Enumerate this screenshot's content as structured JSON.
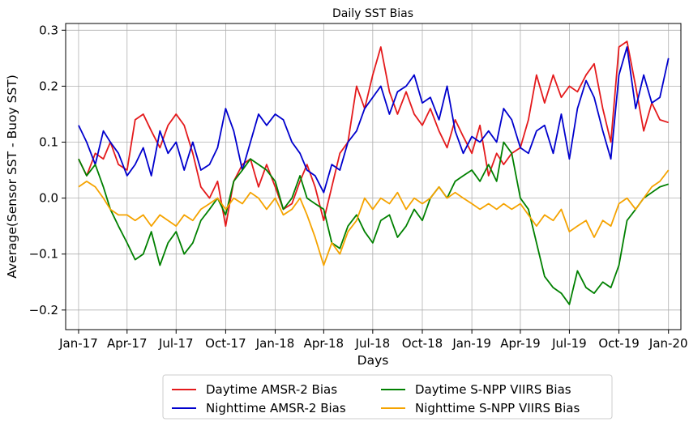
{
  "chart_data": {
    "type": "line",
    "title": "Daily SST Bias",
    "xlabel": "Days",
    "ylabel": "Average(Sensor SST - Buoy SST)",
    "x_tick_labels": [
      "Jan-17",
      "Apr-17",
      "Jul-17",
      "Oct-17",
      "Jan-18",
      "Apr-18",
      "Jul-18",
      "Oct-18",
      "Jan-19",
      "Apr-19",
      "Jul-19",
      "Oct-19",
      "Jan-20"
    ],
    "xlim": [
      "2016-12-08",
      "2020-01-24"
    ],
    "ylim": [
      -0.235,
      0.312
    ],
    "y_ticks": [
      -0.2,
      -0.1,
      0.0,
      0.1,
      0.2,
      0.3
    ],
    "y_tick_labels": [
      "−0.2",
      "−0.1",
      "0.0",
      "0.1",
      "0.2",
      "0.3"
    ],
    "grid": true,
    "legend_position": "bottom-outside",
    "series": [
      {
        "name": "Daytime AMSR-2 Bias",
        "color": "#e41a1c",
        "x": [
          "2017-01-01",
          "2017-01-16",
          "2017-02-01",
          "2017-02-16",
          "2017-03-01",
          "2017-03-16",
          "2017-04-01",
          "2017-04-16",
          "2017-05-01",
          "2017-05-16",
          "2017-06-01",
          "2017-06-16",
          "2017-07-01",
          "2017-07-16",
          "2017-08-01",
          "2017-08-16",
          "2017-09-01",
          "2017-09-16",
          "2017-10-01",
          "2017-10-16",
          "2017-11-01",
          "2017-11-16",
          "2017-12-01",
          "2017-12-16",
          "2018-01-01",
          "2018-01-16",
          "2018-02-01",
          "2018-02-16",
          "2018-03-01",
          "2018-03-16",
          "2018-04-01",
          "2018-04-16",
          "2018-05-01",
          "2018-05-16",
          "2018-06-01",
          "2018-06-16",
          "2018-07-01",
          "2018-07-16",
          "2018-08-01",
          "2018-08-16",
          "2018-09-01",
          "2018-09-16",
          "2018-10-01",
          "2018-10-16",
          "2018-11-01",
          "2018-11-16",
          "2018-12-01",
          "2018-12-16",
          "2019-01-01",
          "2019-01-16",
          "2019-02-01",
          "2019-02-16",
          "2019-03-01",
          "2019-03-16",
          "2019-04-01",
          "2019-04-16",
          "2019-05-01",
          "2019-05-16",
          "2019-06-01",
          "2019-06-16",
          "2019-07-01",
          "2019-07-16",
          "2019-08-01",
          "2019-08-16",
          "2019-09-01",
          "2019-09-16",
          "2019-10-01",
          "2019-10-16",
          "2019-11-01",
          "2019-11-16",
          "2019-12-01",
          "2019-12-16",
          "2020-01-01"
        ],
        "values": [
          0.07,
          0.04,
          0.08,
          0.07,
          0.1,
          0.06,
          0.05,
          0.14,
          0.15,
          0.12,
          0.09,
          0.13,
          0.15,
          0.13,
          0.08,
          0.02,
          0.0,
          0.03,
          -0.05,
          0.03,
          0.06,
          0.07,
          0.02,
          0.06,
          0.02,
          -0.02,
          -0.01,
          0.03,
          0.06,
          0.02,
          -0.04,
          0.02,
          0.08,
          0.1,
          0.2,
          0.16,
          0.22,
          0.27,
          0.19,
          0.15,
          0.19,
          0.15,
          0.13,
          0.16,
          0.12,
          0.09,
          0.14,
          0.11,
          0.08,
          0.13,
          0.04,
          0.08,
          0.06,
          0.08,
          0.09,
          0.14,
          0.22,
          0.17,
          0.22,
          0.18,
          0.2,
          0.19,
          0.22,
          0.24,
          0.16,
          0.1,
          0.27,
          0.28,
          0.2,
          0.12,
          0.17,
          0.14,
          0.135
        ]
      },
      {
        "name": "Nighttime AMSR-2 Bias",
        "color": "#0000cd",
        "x": [
          "2017-01-01",
          "2017-01-16",
          "2017-02-01",
          "2017-02-16",
          "2017-03-01",
          "2017-03-16",
          "2017-04-01",
          "2017-04-16",
          "2017-05-01",
          "2017-05-16",
          "2017-06-01",
          "2017-06-16",
          "2017-07-01",
          "2017-07-16",
          "2017-08-01",
          "2017-08-16",
          "2017-09-01",
          "2017-09-16",
          "2017-10-01",
          "2017-10-16",
          "2017-11-01",
          "2017-11-16",
          "2017-12-01",
          "2017-12-16",
          "2018-01-01",
          "2018-01-16",
          "2018-02-01",
          "2018-02-16",
          "2018-03-01",
          "2018-03-16",
          "2018-04-01",
          "2018-04-16",
          "2018-05-01",
          "2018-05-16",
          "2018-06-01",
          "2018-06-16",
          "2018-07-01",
          "2018-07-16",
          "2018-08-01",
          "2018-08-16",
          "2018-09-01",
          "2018-09-16",
          "2018-10-01",
          "2018-10-16",
          "2018-11-01",
          "2018-11-16",
          "2018-12-01",
          "2018-12-16",
          "2019-01-01",
          "2019-01-16",
          "2019-02-01",
          "2019-02-16",
          "2019-03-01",
          "2019-03-16",
          "2019-04-01",
          "2019-04-16",
          "2019-05-01",
          "2019-05-16",
          "2019-06-01",
          "2019-06-16",
          "2019-07-01",
          "2019-07-16",
          "2019-08-01",
          "2019-08-16",
          "2019-09-01",
          "2019-09-16",
          "2019-10-01",
          "2019-10-16",
          "2019-11-01",
          "2019-11-16",
          "2019-12-01",
          "2019-12-16",
          "2020-01-01"
        ],
        "values": [
          0.13,
          0.1,
          0.06,
          0.12,
          0.1,
          0.08,
          0.04,
          0.06,
          0.09,
          0.04,
          0.12,
          0.08,
          0.1,
          0.05,
          0.1,
          0.05,
          0.06,
          0.09,
          0.16,
          0.12,
          0.05,
          0.1,
          0.15,
          0.13,
          0.15,
          0.14,
          0.1,
          0.08,
          0.05,
          0.04,
          0.01,
          0.06,
          0.05,
          0.1,
          0.12,
          0.16,
          0.18,
          0.2,
          0.15,
          0.19,
          0.2,
          0.22,
          0.17,
          0.18,
          0.14,
          0.2,
          0.12,
          0.08,
          0.11,
          0.1,
          0.12,
          0.1,
          0.16,
          0.14,
          0.09,
          0.08,
          0.12,
          0.13,
          0.08,
          0.15,
          0.07,
          0.16,
          0.21,
          0.18,
          0.12,
          0.07,
          0.22,
          0.27,
          0.16,
          0.22,
          0.17,
          0.18,
          0.25
        ]
      },
      {
        "name": "Daytime S-NPP VIIRS Bias",
        "color": "#008000",
        "x": [
          "2017-01-01",
          "2017-01-16",
          "2017-02-01",
          "2017-02-16",
          "2017-03-01",
          "2017-03-16",
          "2017-04-01",
          "2017-04-16",
          "2017-05-01",
          "2017-05-16",
          "2017-06-01",
          "2017-06-16",
          "2017-07-01",
          "2017-07-16",
          "2017-08-01",
          "2017-08-16",
          "2017-09-01",
          "2017-09-16",
          "2017-10-01",
          "2017-10-16",
          "2017-11-01",
          "2017-11-16",
          "2017-12-01",
          "2017-12-16",
          "2018-01-01",
          "2018-01-16",
          "2018-02-01",
          "2018-02-16",
          "2018-03-01",
          "2018-03-16",
          "2018-04-01",
          "2018-04-16",
          "2018-05-01",
          "2018-05-16",
          "2018-06-01",
          "2018-06-16",
          "2018-07-01",
          "2018-07-16",
          "2018-08-01",
          "2018-08-16",
          "2018-09-01",
          "2018-09-16",
          "2018-10-01",
          "2018-10-16",
          "2018-11-01",
          "2018-11-16",
          "2018-12-01",
          "2018-12-16",
          "2019-01-01",
          "2019-01-16",
          "2019-02-01",
          "2019-02-16",
          "2019-03-01",
          "2019-03-16",
          "2019-04-01",
          "2019-04-16",
          "2019-05-01",
          "2019-05-16",
          "2019-06-01",
          "2019-06-16",
          "2019-07-01",
          "2019-07-16",
          "2019-08-01",
          "2019-08-16",
          "2019-09-01",
          "2019-09-16",
          "2019-10-01",
          "2019-10-16",
          "2019-11-01",
          "2019-11-16",
          "2019-12-01",
          "2019-12-16",
          "2020-01-01"
        ],
        "values": [
          0.07,
          0.04,
          0.06,
          0.02,
          -0.02,
          -0.05,
          -0.08,
          -0.11,
          -0.1,
          -0.06,
          -0.12,
          -0.08,
          -0.06,
          -0.1,
          -0.08,
          -0.04,
          -0.02,
          0.0,
          -0.03,
          0.03,
          0.05,
          0.07,
          0.06,
          0.05,
          0.03,
          -0.02,
          0.0,
          0.04,
          0.0,
          -0.01,
          -0.02,
          -0.08,
          -0.09,
          -0.05,
          -0.03,
          -0.06,
          -0.08,
          -0.04,
          -0.03,
          -0.07,
          -0.05,
          -0.02,
          -0.04,
          0.0,
          0.02,
          0.0,
          0.03,
          0.04,
          0.05,
          0.03,
          0.06,
          0.03,
          0.1,
          0.08,
          0.0,
          -0.02,
          -0.08,
          -0.14,
          -0.16,
          -0.17,
          -0.19,
          -0.13,
          -0.16,
          -0.17,
          -0.15,
          -0.16,
          -0.12,
          -0.04,
          -0.02,
          0.0,
          0.01,
          0.02,
          0.025
        ]
      },
      {
        "name": "Nighttime S-NPP VIIRS Bias",
        "color": "#f5a300",
        "x": [
          "2017-01-01",
          "2017-01-16",
          "2017-02-01",
          "2017-02-16",
          "2017-03-01",
          "2017-03-16",
          "2017-04-01",
          "2017-04-16",
          "2017-05-01",
          "2017-05-16",
          "2017-06-01",
          "2017-06-16",
          "2017-07-01",
          "2017-07-16",
          "2017-08-01",
          "2017-08-16",
          "2017-09-01",
          "2017-09-16",
          "2017-10-01",
          "2017-10-16",
          "2017-11-01",
          "2017-11-16",
          "2017-12-01",
          "2017-12-16",
          "2018-01-01",
          "2018-01-16",
          "2018-02-01",
          "2018-02-16",
          "2018-03-01",
          "2018-03-16",
          "2018-04-01",
          "2018-04-16",
          "2018-05-01",
          "2018-05-16",
          "2018-06-01",
          "2018-06-16",
          "2018-07-01",
          "2018-07-16",
          "2018-08-01",
          "2018-08-16",
          "2018-09-01",
          "2018-09-16",
          "2018-10-01",
          "2018-10-16",
          "2018-11-01",
          "2018-11-16",
          "2018-12-01",
          "2018-12-16",
          "2019-01-01",
          "2019-01-16",
          "2019-02-01",
          "2019-02-16",
          "2019-03-01",
          "2019-03-16",
          "2019-04-01",
          "2019-04-16",
          "2019-05-01",
          "2019-05-16",
          "2019-06-01",
          "2019-06-16",
          "2019-07-01",
          "2019-07-16",
          "2019-08-01",
          "2019-08-16",
          "2019-09-01",
          "2019-09-16",
          "2019-10-01",
          "2019-10-16",
          "2019-11-01",
          "2019-11-16",
          "2019-12-01",
          "2019-12-16",
          "2020-01-01"
        ],
        "values": [
          0.02,
          0.03,
          0.02,
          0.0,
          -0.02,
          -0.03,
          -0.03,
          -0.04,
          -0.03,
          -0.05,
          -0.03,
          -0.04,
          -0.05,
          -0.03,
          -0.04,
          -0.02,
          -0.01,
          0.0,
          -0.02,
          0.0,
          -0.01,
          0.01,
          0.0,
          -0.02,
          0.0,
          -0.03,
          -0.02,
          0.0,
          -0.03,
          -0.07,
          -0.12,
          -0.08,
          -0.1,
          -0.06,
          -0.04,
          0.0,
          -0.02,
          0.0,
          -0.01,
          0.01,
          -0.02,
          0.0,
          -0.01,
          0.0,
          0.02,
          0.0,
          0.01,
          0.0,
          -0.01,
          -0.02,
          -0.01,
          -0.02,
          -0.01,
          -0.02,
          -0.01,
          -0.03,
          -0.05,
          -0.03,
          -0.04,
          -0.02,
          -0.06,
          -0.05,
          -0.04,
          -0.07,
          -0.04,
          -0.05,
          -0.01,
          0.0,
          -0.02,
          0.0,
          0.02,
          0.03,
          0.05
        ]
      }
    ]
  }
}
